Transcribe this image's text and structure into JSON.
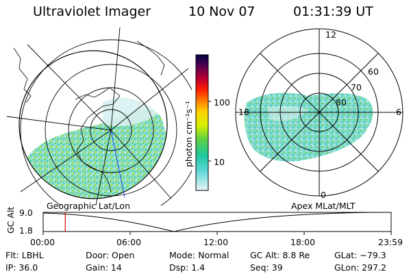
{
  "header": {
    "instrument": "Ultraviolet Imager",
    "date": "10 Nov 07",
    "time": "01:31:39 UT"
  },
  "colorbar": {
    "unit_label": "photon cm⁻²s⁻¹",
    "ticks": [
      "100",
      "10"
    ],
    "colors": [
      "#000040",
      "#400050",
      "#800060",
      "#c00030",
      "#ff0000",
      "#ff6000",
      "#ffa000",
      "#ffd000",
      "#e0f000",
      "#a0e000",
      "#50d040",
      "#20c880",
      "#20c8c8",
      "#80e0e0",
      "#c0f0f0",
      "#e8f4f4"
    ]
  },
  "left_map": {
    "label": "Geographic Lat/Lon"
  },
  "right_map": {
    "label": "Apex  MLat/MLT",
    "mlt_labels": {
      "top": "12",
      "left": "18",
      "right": "6",
      "bottom": "0"
    },
    "lat_labels": [
      "60",
      "70",
      "80"
    ]
  },
  "altitude_plot": {
    "ylabel": "GC Alt",
    "yticks": [
      "9.0",
      "1.8"
    ],
    "xticks": [
      "00:00",
      "06:00",
      "12:00",
      "18:00",
      "23:59"
    ],
    "current_time_fraction": 0.0636
  },
  "info": {
    "filter": "Flt: LBHL",
    "door": "Door: Open",
    "mode": "Mode: Normal",
    "gc_alt": "GC Alt: 8.8 Re",
    "glat": "GLat: −79.3",
    "ip": "IP: 36.0",
    "gain": "Gain: 14",
    "dsp": "Dsp:    1.4",
    "seq": "Seq: 39",
    "glon": "GLon: 297.2"
  }
}
